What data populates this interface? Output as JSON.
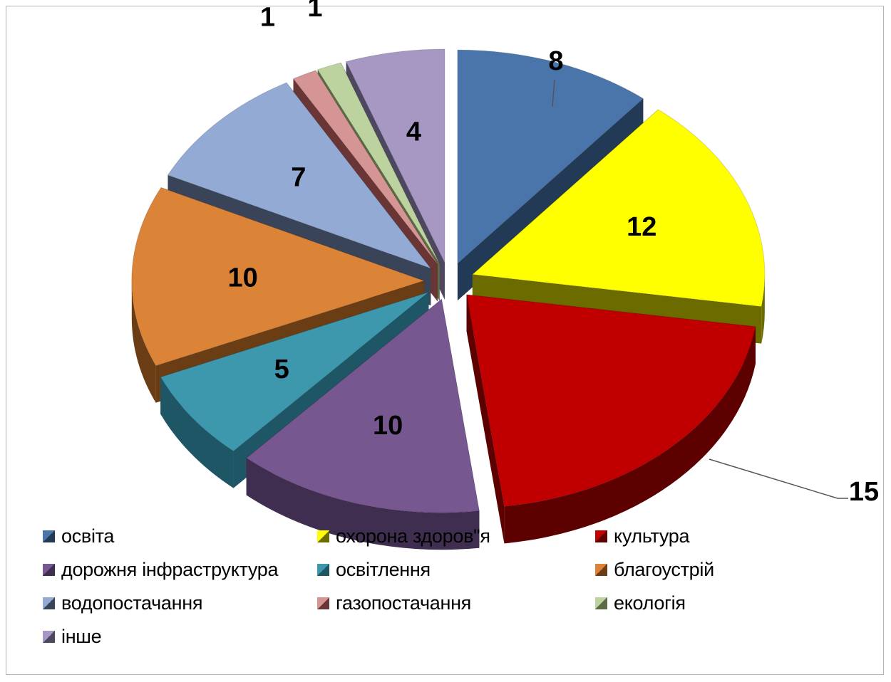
{
  "chart_data": {
    "type": "pie",
    "title": "",
    "categories": [
      "освіта",
      "охорона здоров\"я",
      "культура",
      "дорожня інфраструктура",
      "освітлення",
      "благоустрій",
      "водопостачання",
      "газопостачання",
      "екологія",
      "інше"
    ],
    "values": [
      8,
      12,
      15,
      10,
      5,
      10,
      7,
      1,
      1,
      4
    ],
    "data_labels": [
      "8",
      "12",
      "15",
      "10",
      "5",
      "10",
      "7",
      "1",
      "1",
      "4"
    ],
    "colors": [
      "#4a75aa",
      "#ffff00",
      "#c00000",
      "#77578f",
      "#3d97ad",
      "#db8438",
      "#93aad4",
      "#d69595",
      "#bcd39f",
      "#a797c3"
    ],
    "side_colors": [
      "#233a57",
      "#6b6b00",
      "#5c0000",
      "#3f2e4f",
      "#1f5666",
      "#6b3d14",
      "#3a4458",
      "#6a3535",
      "#5b6b45",
      "#4e4760"
    ],
    "legend_position": "bottom",
    "style": "3d-exploded"
  }
}
